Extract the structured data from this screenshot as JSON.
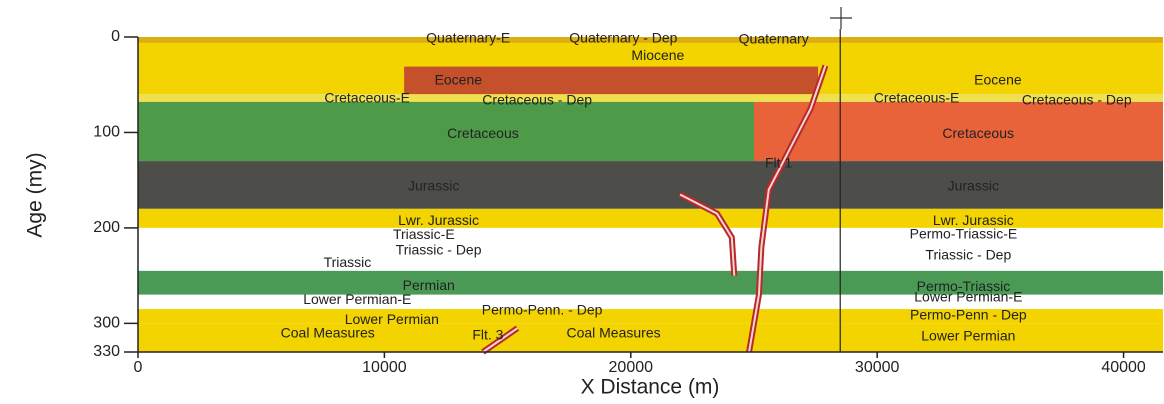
{
  "chart_data": {
    "type": "section",
    "xlabel": "X Distance (m)",
    "ylabel": "Age (my)",
    "xlim": [
      0,
      41600
    ],
    "ylim": [
      0,
      330
    ],
    "xticks": [
      0,
      10000,
      20000,
      30000,
      40000
    ],
    "yticks": [
      0,
      100,
      200,
      300,
      330
    ],
    "marker_x": 28500,
    "bands": [
      {
        "x": [
          0,
          41600
        ],
        "age": [
          0,
          60
        ],
        "color": "#f3d400"
      },
      {
        "x": [
          0,
          41600
        ],
        "age": [
          0,
          6
        ],
        "color": "#dcae10"
      },
      {
        "x": [
          10800,
          27600
        ],
        "age": [
          31,
          60
        ],
        "color": "#c4502c"
      },
      {
        "x": [
          0,
          41600
        ],
        "age": [
          60,
          68
        ],
        "color": "#efe050"
      },
      {
        "x": [
          0,
          25000
        ],
        "age": [
          68,
          130
        ],
        "color": "#4f9a48"
      },
      {
        "x": [
          25000,
          41600
        ],
        "age": [
          68,
          130
        ],
        "color": "#e8633a"
      },
      {
        "x": [
          0,
          41600
        ],
        "age": [
          130,
          180
        ],
        "color": "#4d4d4a"
      },
      {
        "x": [
          0,
          41600
        ],
        "age": [
          180,
          200
        ],
        "color": "#f3d400"
      },
      {
        "x": [
          0,
          41600
        ],
        "age": [
          200,
          245
        ],
        "color": "#ffffff"
      },
      {
        "x": [
          0,
          41600
        ],
        "age": [
          245,
          270
        ],
        "color": "#4a9a55"
      },
      {
        "x": [
          0,
          41600
        ],
        "age": [
          270,
          285
        ],
        "color": "#ffffff"
      },
      {
        "x": [
          0,
          41600
        ],
        "age": [
          285,
          300
        ],
        "color": "#f3d400"
      },
      {
        "x": [
          0,
          41600
        ],
        "age": [
          300,
          330
        ],
        "color": "#f3d400"
      }
    ],
    "faults": [
      {
        "x": [
          27900,
          27300,
          26400,
          25600,
          25300,
          25200,
          25000,
          24800
        ],
        "y": [
          30,
          75,
          120,
          160,
          220,
          270,
          300,
          330
        ]
      },
      {
        "x": [
          22000,
          23500,
          24100,
          24200
        ],
        "y": [
          165,
          185,
          210,
          250
        ]
      },
      {
        "x": [
          14000,
          15400
        ],
        "y": [
          330,
          305
        ]
      }
    ],
    "fault_color": "#b8282c",
    "labels": [
      {
        "text": "Quaternary-E",
        "x": 13400,
        "y": 2
      },
      {
        "text": "Quaternary - Dep",
        "x": 19700,
        "y": 2
      },
      {
        "text": "Quaternary",
        "x": 25800,
        "y": 3
      },
      {
        "text": "Miocene",
        "x": 21100,
        "y": 20
      },
      {
        "text": "Eocene",
        "x": 13000,
        "y": 46
      },
      {
        "text": "Eocene",
        "x": 34900,
        "y": 46
      },
      {
        "text": "Cretaceous-E",
        "x": 9300,
        "y": 65
      },
      {
        "text": "Cretaceous - Dep",
        "x": 16200,
        "y": 67
      },
      {
        "text": "Cretaceous-E",
        "x": 31600,
        "y": 65
      },
      {
        "text": "Cretaceous - Dep",
        "x": 38100,
        "y": 67
      },
      {
        "text": "Cretaceous",
        "x": 14000,
        "y": 102
      },
      {
        "text": "Cretaceous",
        "x": 34100,
        "y": 102
      },
      {
        "text": "Flt 1",
        "x": 26000,
        "y": 133
      },
      {
        "text": "Jurassic",
        "x": 12000,
        "y": 157
      },
      {
        "text": "Jurassic",
        "x": 33900,
        "y": 157
      },
      {
        "text": "Lwr. Jurassic",
        "x": 12200,
        "y": 193
      },
      {
        "text": "Lwr. Jurassic",
        "x": 33900,
        "y": 193
      },
      {
        "text": "Triassic-E",
        "x": 11600,
        "y": 208
      },
      {
        "text": "Permo-Triassic-E",
        "x": 33500,
        "y": 207
      },
      {
        "text": "Triassic - Dep",
        "x": 12200,
        "y": 224
      },
      {
        "text": "Triassic - Dep",
        "x": 33700,
        "y": 229
      },
      {
        "text": "Triassic",
        "x": 8500,
        "y": 237
      },
      {
        "text": "Permian",
        "x": 11800,
        "y": 261
      },
      {
        "text": "Permo-Triassic",
        "x": 33500,
        "y": 262
      },
      {
        "text": "Lower Permian-E",
        "x": 8900,
        "y": 276
      },
      {
        "text": "Lower Permian-E",
        "x": 33700,
        "y": 273
      },
      {
        "text": "Permo-Penn. - Dep",
        "x": 16400,
        "y": 287
      },
      {
        "text": "Permo-Penn - Dep",
        "x": 33700,
        "y": 292
      },
      {
        "text": "Lower Permian",
        "x": 10300,
        "y": 297
      },
      {
        "text": "Coal Measures",
        "x": 7700,
        "y": 311
      },
      {
        "text": "Flt. 3",
        "x": 14200,
        "y": 313
      },
      {
        "text": "Coal Measures",
        "x": 19300,
        "y": 311
      },
      {
        "text": "Lower Permian",
        "x": 33700,
        "y": 314
      }
    ]
  }
}
